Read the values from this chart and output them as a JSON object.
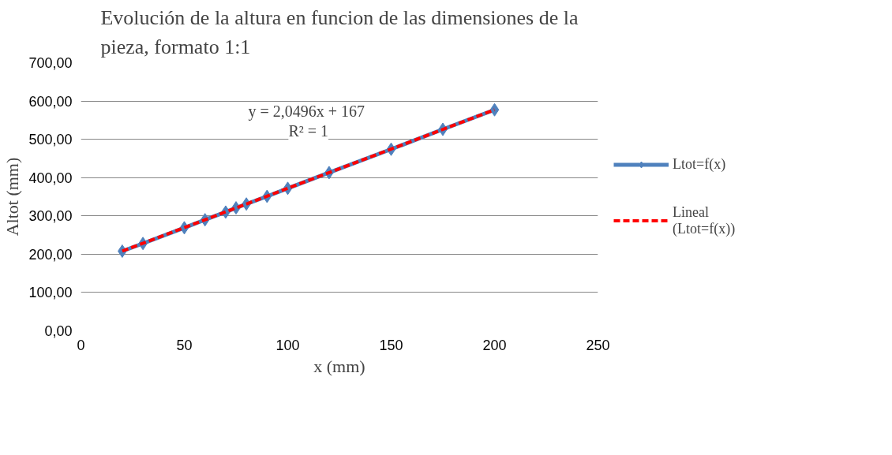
{
  "chart_data": {
    "type": "line",
    "title": "Evolución de la altura en funcion de las dimensiones de la pieza, formato 1:1",
    "xlabel": "x (mm)",
    "ylabel": "Altot (mm)",
    "series": [
      {
        "name": "Ltot=f(x)",
        "color": "#4f81bd",
        "marker": "diamond",
        "line_style": "solid",
        "x": [
          20,
          30,
          50,
          60,
          70,
          75,
          80,
          90,
          100,
          120,
          150,
          175,
          200
        ],
        "values": [
          208,
          228,
          269,
          290,
          310,
          321,
          331,
          351,
          372,
          413,
          474,
          526,
          577
        ]
      },
      {
        "name": "Lineal (Ltot=f(x))",
        "color": "#ff0000",
        "marker": "none",
        "line_style": "dashed",
        "x": [
          20,
          200
        ],
        "values": [
          208,
          577
        ]
      }
    ],
    "annotations": [
      "y = 2,0496x +  167",
      "R² = 1"
    ],
    "xlim": [
      0,
      250
    ],
    "xticks": [
      0,
      50,
      100,
      150,
      200,
      250
    ],
    "ylim": [
      0,
      700
    ],
    "yticks": [
      {
        "value": 0,
        "label": "0,00"
      },
      {
        "value": 100,
        "label": "100,00"
      },
      {
        "value": 200,
        "label": "200,00"
      },
      {
        "value": 300,
        "label": "300,00"
      },
      {
        "value": 400,
        "label": "400,00"
      },
      {
        "value": 500,
        "label": "500,00"
      },
      {
        "value": 600,
        "label": "600,00"
      },
      {
        "value": 700,
        "label": "700,00"
      }
    ],
    "grid": "y",
    "legend": "right"
  }
}
